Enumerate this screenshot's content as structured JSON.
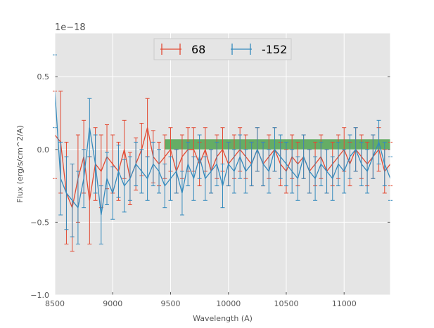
{
  "chart_data": {
    "type": "line",
    "xlabel": "Wavelength (A)",
    "ylabel": "Flux (erg/s/cm^2/A)",
    "y_offset_label": "1e−18",
    "xlim": [
      8500,
      11400
    ],
    "ylim": [
      -1.0,
      0.8
    ],
    "y_scale_factor": 1e-18,
    "xticks": [
      8500,
      9000,
      9500,
      10000,
      10500,
      11000
    ],
    "xtick_labels": [
      "8500",
      "9000",
      "9500",
      "10000",
      "10500",
      "11000"
    ],
    "yticks": [
      0.5,
      0.0,
      -0.5,
      -1.0
    ],
    "ytick_labels": [
      "0.5",
      "0.0",
      "−0.5",
      "−1.0"
    ],
    "grid": true,
    "legend_position": "top-center",
    "band": {
      "x": [
        9450,
        11400
      ],
      "y": [
        0.0,
        0.07
      ],
      "color": "#3a9a3a"
    },
    "series": [
      {
        "name": "68",
        "color": "#E24A33",
        "x": [
          8500,
          8550,
          8600,
          8650,
          8700,
          8750,
          8800,
          8850,
          8900,
          8950,
          9000,
          9050,
          9100,
          9150,
          9200,
          9250,
          9300,
          9350,
          9400,
          9450,
          9500,
          9550,
          9600,
          9650,
          9700,
          9750,
          9800,
          9850,
          9900,
          9950,
          10000,
          10050,
          10100,
          10150,
          10200,
          10250,
          10300,
          10350,
          10400,
          10450,
          10500,
          10550,
          10600,
          10650,
          10700,
          10750,
          10800,
          10850,
          10900,
          10950,
          11000,
          11050,
          11100,
          11150,
          11200,
          11250,
          11300,
          11350,
          11400
        ],
        "y": [
          0.1,
          0.05,
          -0.3,
          -0.4,
          -0.2,
          -0.05,
          -0.35,
          -0.1,
          -0.15,
          -0.05,
          -0.1,
          -0.15,
          0.0,
          -0.2,
          -0.1,
          0.0,
          0.15,
          -0.05,
          -0.1,
          -0.05,
          0.0,
          -0.15,
          -0.05,
          0.0,
          0.0,
          -0.1,
          0.0,
          -0.15,
          -0.05,
          0.0,
          -0.1,
          -0.05,
          0.0,
          -0.05,
          -0.1,
          0.0,
          -0.1,
          -0.05,
          0.0,
          -0.1,
          -0.15,
          -0.05,
          -0.1,
          -0.05,
          -0.15,
          -0.1,
          -0.05,
          -0.15,
          -0.1,
          -0.05,
          0.0,
          -0.1,
          0.0,
          -0.05,
          -0.1,
          -0.05,
          0.0,
          -0.15,
          -0.1
        ],
        "err": [
          0.3,
          0.35,
          0.35,
          0.3,
          0.3,
          0.25,
          0.3,
          0.25,
          0.25,
          0.22,
          0.2,
          0.2,
          0.2,
          0.18,
          0.18,
          0.18,
          0.2,
          0.18,
          0.15,
          0.15,
          0.15,
          0.15,
          0.15,
          0.15,
          0.15,
          0.15,
          0.15,
          0.15,
          0.15,
          0.15,
          0.15,
          0.15,
          0.15,
          0.15,
          0.15,
          0.15,
          0.15,
          0.15,
          0.15,
          0.15,
          0.15,
          0.15,
          0.15,
          0.15,
          0.15,
          0.15,
          0.15,
          0.15,
          0.15,
          0.15,
          0.15,
          0.15,
          0.15,
          0.15,
          0.15,
          0.15,
          0.15,
          0.15,
          0.15
        ]
      },
      {
        "name": "-152",
        "color": "#348ABD",
        "x": [
          8500,
          8550,
          8600,
          8650,
          8700,
          8750,
          8800,
          8850,
          8900,
          8950,
          9000,
          9050,
          9100,
          9150,
          9200,
          9250,
          9300,
          9350,
          9400,
          9450,
          9500,
          9550,
          9600,
          9650,
          9700,
          9750,
          9800,
          9850,
          9900,
          9950,
          10000,
          10050,
          10100,
          10150,
          10200,
          10250,
          10300,
          10350,
          10400,
          10450,
          10500,
          10550,
          10600,
          10650,
          10700,
          10750,
          10800,
          10850,
          10900,
          10950,
          11000,
          11050,
          11100,
          11150,
          11200,
          11250,
          11300,
          11350,
          11400
        ],
        "y": [
          0.4,
          -0.2,
          -0.3,
          -0.35,
          -0.4,
          -0.2,
          0.15,
          -0.1,
          -0.45,
          -0.2,
          -0.3,
          -0.15,
          -0.25,
          -0.2,
          -0.1,
          -0.15,
          -0.2,
          -0.1,
          -0.15,
          -0.25,
          -0.2,
          -0.15,
          -0.3,
          -0.1,
          -0.2,
          -0.05,
          -0.2,
          -0.15,
          -0.1,
          -0.25,
          -0.1,
          -0.15,
          -0.05,
          -0.15,
          -0.1,
          0.0,
          -0.1,
          -0.15,
          0.0,
          -0.05,
          -0.1,
          -0.15,
          -0.2,
          -0.05,
          -0.15,
          -0.2,
          -0.1,
          -0.15,
          -0.2,
          -0.1,
          -0.15,
          -0.05,
          0.0,
          -0.1,
          -0.15,
          -0.05,
          0.05,
          -0.1,
          -0.2
        ],
        "err": [
          0.25,
          0.25,
          0.25,
          0.25,
          0.25,
          0.2,
          0.2,
          0.2,
          0.2,
          0.18,
          0.18,
          0.18,
          0.18,
          0.15,
          0.15,
          0.15,
          0.15,
          0.15,
          0.15,
          0.15,
          0.15,
          0.15,
          0.15,
          0.15,
          0.15,
          0.15,
          0.15,
          0.15,
          0.15,
          0.15,
          0.15,
          0.15,
          0.15,
          0.15,
          0.15,
          0.15,
          0.15,
          0.15,
          0.15,
          0.15,
          0.15,
          0.15,
          0.15,
          0.15,
          0.15,
          0.15,
          0.15,
          0.15,
          0.15,
          0.15,
          0.15,
          0.15,
          0.15,
          0.15,
          0.15,
          0.15,
          0.15,
          0.15,
          0.15
        ]
      }
    ]
  }
}
